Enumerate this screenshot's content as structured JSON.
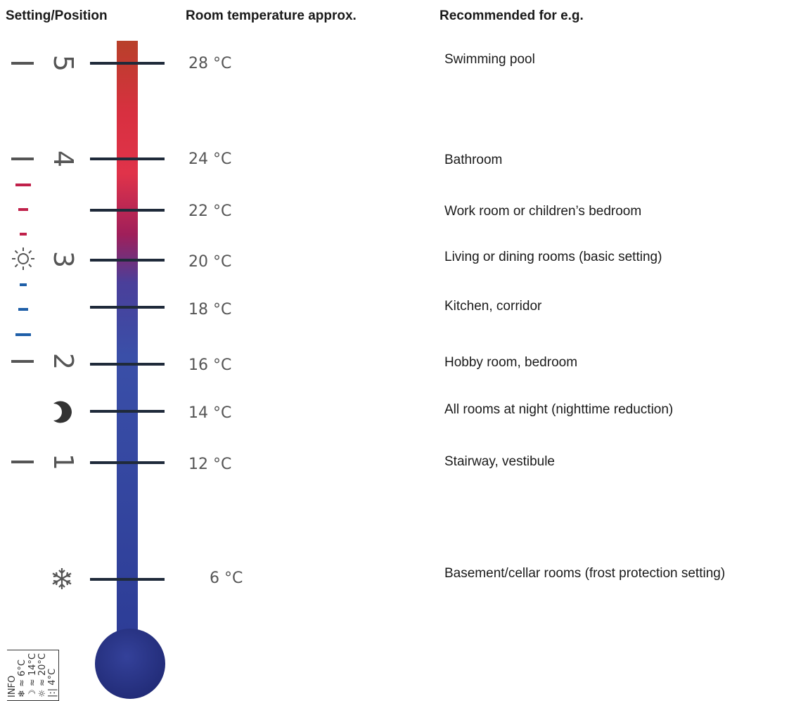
{
  "headers": {
    "setting": "Setting/Position",
    "temperature": "Room temperature approx.",
    "recommended": "Recommended for e.g."
  },
  "settings": {
    "five": "5",
    "four": "4",
    "three": "3",
    "two": "2",
    "one": "1"
  },
  "temperatures": {
    "t28": "28 °C",
    "t24": "24 °C",
    "t22": "22 °C",
    "t20": "20 °C",
    "t18": "18 °C",
    "t16": "16 °C",
    "t14": "14 °C",
    "t12": "12 °C",
    "t6": "6 °C"
  },
  "recommendations": {
    "r28": "Swimming pool",
    "r24": "Bathroom",
    "r22": "Work room or children’s bedroom",
    "r20": "Living or dining rooms (basic setting)",
    "r18": "Kitchen, corridor",
    "r16": "Hobby room, bedroom",
    "r14": "All rooms at night (nighttime reduction)",
    "r12": "Stairway, vestibule",
    "r6": "Basement/cellar rooms (frost protection setting)"
  },
  "info_label": {
    "title": "INFO",
    "frost": "≈ 6°C",
    "night": "≈ 14°C",
    "sun": "≈ 20°C",
    "step": "4°C"
  },
  "colors": {
    "warm": "#c0392b",
    "hot": "#e0334a",
    "magenta": "#a01f5a",
    "cool": "#3a4fa8",
    "bulb": "#2a3587",
    "tick": "#1f2a3a",
    "marker_red": "#c0204a",
    "marker_blue": "#1f5fa8"
  },
  "icons": {
    "sun": "sun-icon",
    "moon": "moon-icon",
    "snowflake": "snowflake-icon"
  }
}
